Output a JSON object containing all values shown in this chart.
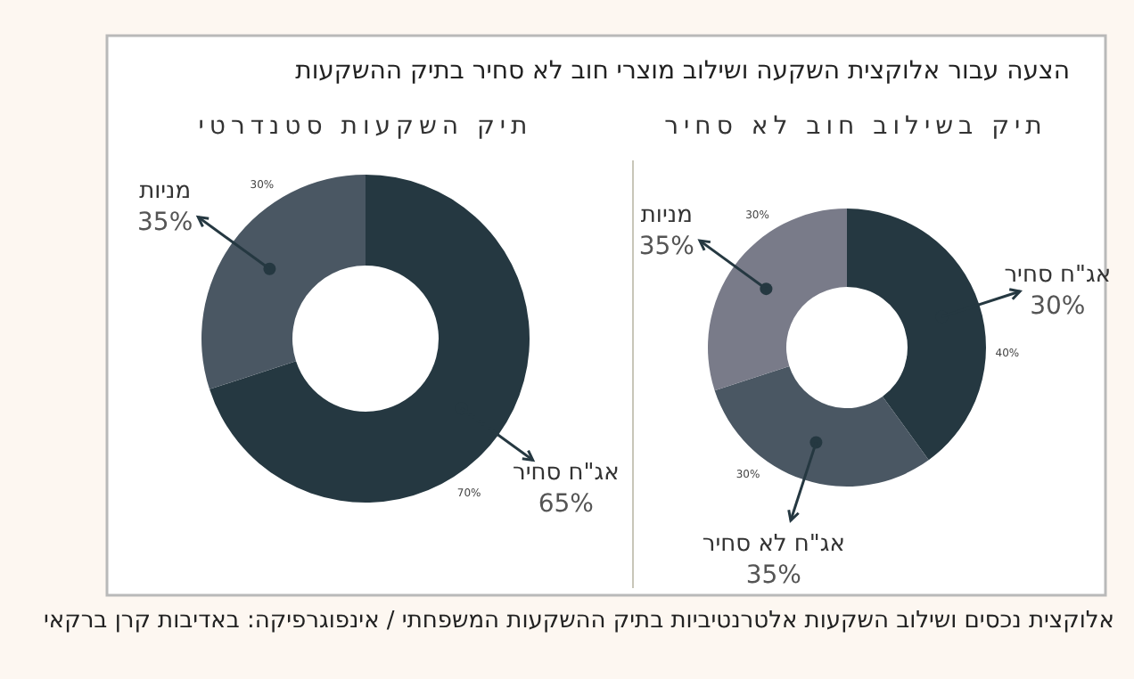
{
  "chart_data": [
    {
      "type": "donut",
      "title": "הצעה עבור אלוקצית השקעה ושילוב מוצרי חוב לא סחיר בתיק ההשקעות",
      "subtitle": "תיק בשילוב חוב לא סחיר",
      "categories": [
        "אג\"ח סחיר",
        "אג\"ח לא סחיר",
        "מניות"
      ],
      "values": [
        40,
        30,
        30
      ],
      "colors": [
        "#253841",
        "#4a5763",
        "#797b89"
      ],
      "value_labels": [
        "40%",
        "30%",
        "30%"
      ],
      "annotations": [
        {
          "text": "30%",
          "x": "אג\"ח סחיר"
        },
        {
          "text": "35%",
          "x": "אג\"ח לא סחיר"
        },
        {
          "text": "35%",
          "x": "מניות"
        },
        "אלוקצית נכסים ושילוב השקעות אלטרנטיביות בתיק ההשקעות המשפחתי / אינפוגרפיקה: באדיבות קרן ברקאי"
      ]
    },
    {
      "type": "donut",
      "title": "תיק השקעות סטנדרטי",
      "categories": [
        "אג\"ח סחיר",
        "מניות"
      ],
      "values": [
        70,
        30
      ],
      "colors": [
        "#253841",
        "#4a5763"
      ],
      "value_labels": [
        "70%",
        "30%"
      ],
      "annotations": [
        {
          "text": "65%",
          "x": "אג\"ח סחיר"
        },
        {
          "text": "35%",
          "x": "מניות"
        }
      ]
    }
  ]
}
